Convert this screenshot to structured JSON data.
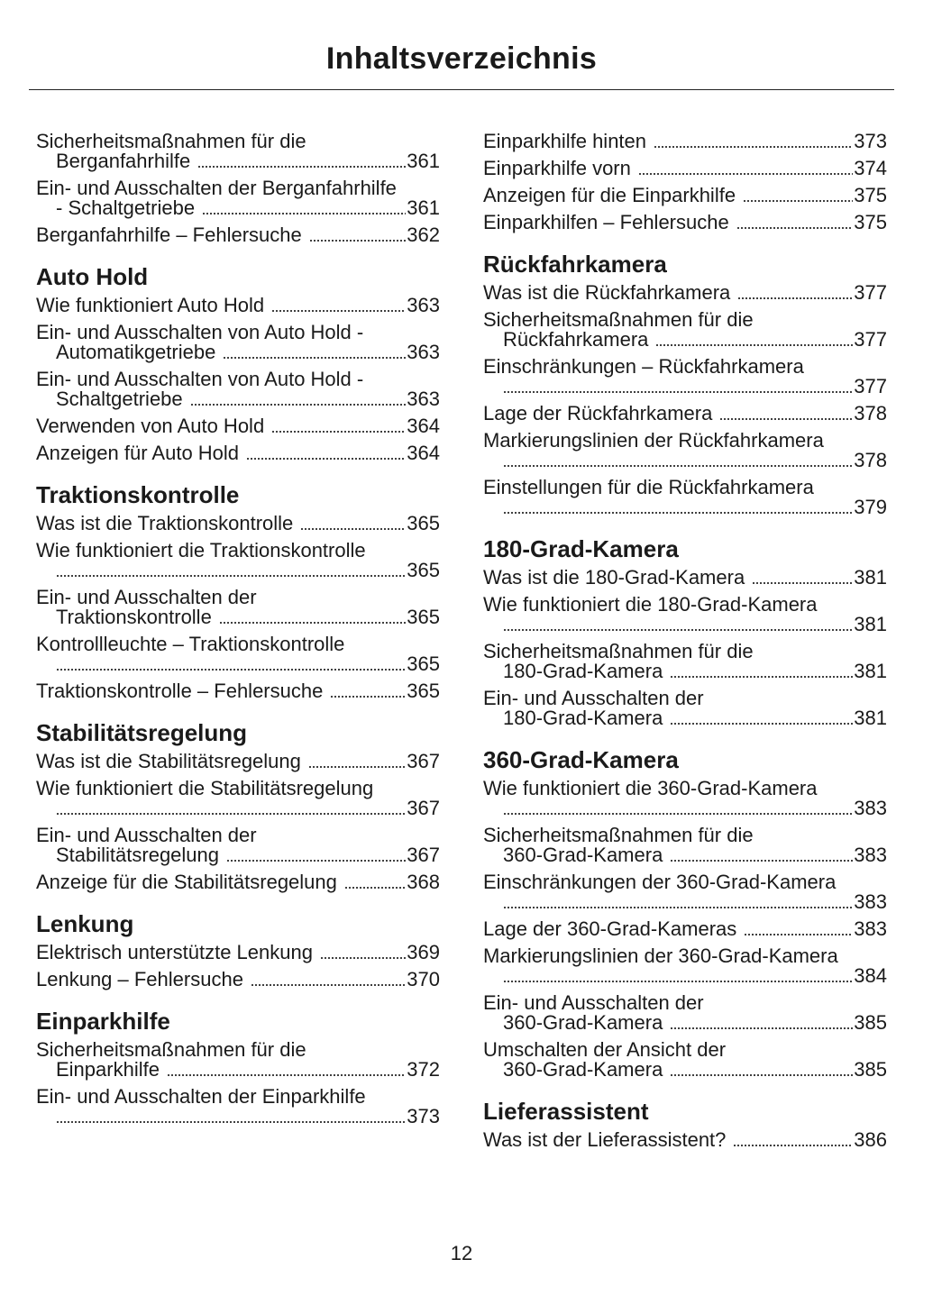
{
  "title": "Inhaltsverzeichnis",
  "page_number": "12",
  "columns": [
    [
      {
        "heading": "",
        "entries": [
          {
            "l1": "Sicherheitsmaßnahmen für die",
            "l2": "Berganfahrhilfe",
            "page": "361"
          },
          {
            "l1": "Ein- und Ausschalten der Berganfahrhilfe",
            "l2": "- Schaltgetriebe",
            "page": "361"
          },
          {
            "l1": "Berganfahrhilfe – Fehlersuche",
            "page": "362"
          }
        ]
      },
      {
        "heading": "Auto Hold",
        "entries": [
          {
            "l1": "Wie funktioniert Auto Hold",
            "page": "363"
          },
          {
            "l1": "Ein- und Ausschalten von Auto Hold -",
            "l2": "Automatikgetriebe",
            "page": "363"
          },
          {
            "l1": "Ein- und Ausschalten von Auto Hold -",
            "l2": "Schaltgetriebe",
            "page": "363"
          },
          {
            "l1": "Verwenden von Auto Hold",
            "page": "364"
          },
          {
            "l1": "Anzeigen für Auto Hold",
            "page": "364"
          }
        ]
      },
      {
        "heading": "Traktionskontrolle",
        "entries": [
          {
            "l1": "Was ist die Traktionskontrolle",
            "page": "365"
          },
          {
            "l1": "Wie funktioniert die Traktionskontrolle",
            "l2": "",
            "page": "365"
          },
          {
            "l1": "Ein- und Ausschalten der",
            "l2": "Traktionskontrolle",
            "page": "365"
          },
          {
            "l1": "Kontrollleuchte – Traktionskontrolle",
            "l2": "",
            "page": "365"
          },
          {
            "l1": "Traktionskontrolle – Fehlersuche",
            "page": "365"
          }
        ]
      },
      {
        "heading": "Stabilitätsregelung",
        "entries": [
          {
            "l1": "Was ist die Stabilitätsregelung",
            "page": "367"
          },
          {
            "l1": "Wie funktioniert die Stabilitätsregelung",
            "l2": "",
            "page": "367"
          },
          {
            "l1": "Ein- und Ausschalten der",
            "l2": "Stabilitätsregelung",
            "page": "367"
          },
          {
            "l1": "Anzeige für die Stabilitätsregelung",
            "page": "368"
          }
        ]
      },
      {
        "heading": "Lenkung",
        "entries": [
          {
            "l1": "Elektrisch unterstützte Lenkung",
            "page": "369"
          },
          {
            "l1": "Lenkung – Fehlersuche",
            "page": "370"
          }
        ]
      },
      {
        "heading": "Einparkhilfe",
        "entries": [
          {
            "l1": "Sicherheitsmaßnahmen für die",
            "l2": "Einparkhilfe",
            "page": "372"
          },
          {
            "l1": "Ein- und Ausschalten der Einparkhilfe",
            "l2": "",
            "page": "373"
          }
        ]
      }
    ],
    [
      {
        "heading": "",
        "entries": [
          {
            "l1": "Einparkhilfe hinten",
            "page": "373"
          },
          {
            "l1": "Einparkhilfe vorn",
            "page": "374"
          },
          {
            "l1": "Anzeigen für die Einparkhilfe",
            "page": "375"
          },
          {
            "l1": "Einparkhilfen – Fehlersuche",
            "page": "375"
          }
        ]
      },
      {
        "heading": "Rückfahrkamera",
        "entries": [
          {
            "l1": "Was ist die Rückfahrkamera",
            "page": "377"
          },
          {
            "l1": "Sicherheitsmaßnahmen für die",
            "l2": "Rückfahrkamera",
            "page": "377"
          },
          {
            "l1": "Einschränkungen – Rückfahrkamera",
            "l2": "",
            "page": "377"
          },
          {
            "l1": "Lage der Rückfahrkamera",
            "page": "378"
          },
          {
            "l1": "Markierungslinien der Rückfahrkamera",
            "l2": "",
            "page": "378"
          },
          {
            "l1": "Einstellungen für die Rückfahrkamera",
            "l2": "",
            "page": "379"
          }
        ]
      },
      {
        "heading": "180-Grad-Kamera",
        "entries": [
          {
            "l1": "Was ist die 180-Grad-Kamera",
            "page": "381"
          },
          {
            "l1": "Wie funktioniert die 180-Grad-Kamera",
            "l2": "",
            "page": "381"
          },
          {
            "l1": "Sicherheitsmaßnahmen für die",
            "l2": "180-Grad-Kamera",
            "page": "381"
          },
          {
            "l1": "Ein- und Ausschalten der",
            "l2": "180-Grad-Kamera",
            "page": "381"
          }
        ]
      },
      {
        "heading": "360-Grad-Kamera",
        "entries": [
          {
            "l1": "Wie funktioniert die 360-Grad-Kamera",
            "l2": "",
            "page": "383"
          },
          {
            "l1": "Sicherheitsmaßnahmen für die",
            "l2": "360-Grad-Kamera",
            "page": "383"
          },
          {
            "l1": "Einschränkungen der 360-Grad-Kamera",
            "l2": "",
            "page": "383"
          },
          {
            "l1": "Lage der 360-Grad-Kameras",
            "page": "383"
          },
          {
            "l1": "Markierungslinien der 360-Grad-Kamera",
            "l2": "",
            "page": "384"
          },
          {
            "l1": "Ein- und Ausschalten der",
            "l2": "360-Grad-Kamera",
            "page": "385"
          },
          {
            "l1": "Umschalten der Ansicht der",
            "l2": "360-Grad-Kamera",
            "page": "385"
          }
        ]
      },
      {
        "heading": "Lieferassistent",
        "entries": [
          {
            "l1": "Was ist der Lieferassistent?",
            "page": "386"
          }
        ]
      }
    ]
  ]
}
